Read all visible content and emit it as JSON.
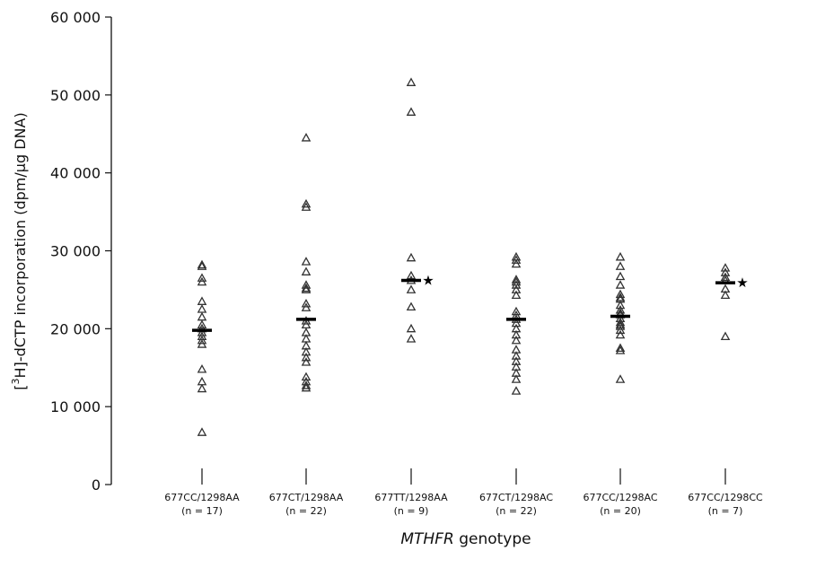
{
  "chart_data": {
    "type": "scatter",
    "xlabel_italic": "MTHFR",
    "xlabel_rest": " genotype",
    "ylabel_prefix": "[",
    "ylabel_sup": "3",
    "ylabel_rest": "H]-dCTP incorporation (dpm/µg DNA)",
    "ylim": [
      0,
      60000
    ],
    "yticks": [
      0,
      10000,
      20000,
      30000,
      40000,
      50000,
      60000
    ],
    "ytick_labels": [
      "0",
      "10 000",
      "20 000",
      "30 000",
      "40 000",
      "50 000",
      "60 000"
    ],
    "grid": false,
    "groups": [
      {
        "label": "677CC/1298AA",
        "n_label": "(n = 17)",
        "median": 19800,
        "star": false,
        "values": [
          28200,
          28000,
          26500,
          26000,
          23500,
          22500,
          21500,
          20500,
          20000,
          19500,
          19000,
          18500,
          18000,
          14800,
          13200,
          12300,
          6700
        ]
      },
      {
        "label": "677CT/1298AA",
        "n_label": "(n = 22)",
        "median": 21200,
        "star": false,
        "values": [
          44500,
          36000,
          35600,
          28600,
          27300,
          25600,
          25200,
          25000,
          23200,
          22700,
          21000,
          20500,
          19500,
          18700,
          17800,
          17000,
          16300,
          15700,
          13800,
          13200,
          12700,
          12400
        ]
      },
      {
        "label": "677TT/1298AA",
        "n_label": "(n = 9)",
        "median": 26200,
        "star": true,
        "values": [
          51600,
          47800,
          29100,
          26800,
          25000,
          22800,
          20000,
          18700,
          26200
        ]
      },
      {
        "label": "677CT/1298AC",
        "n_label": "(n = 22)",
        "median": 21200,
        "star": false,
        "values": [
          29200,
          28800,
          28300,
          26300,
          25600,
          25000,
          24300,
          22200,
          21700,
          21200,
          20700,
          20000,
          19200,
          18500,
          17300,
          16500,
          15800,
          15100,
          14300,
          13500,
          12000,
          26000
        ]
      },
      {
        "label": "677CC/1298AC",
        "n_label": "(n = 20)",
        "median": 21600,
        "star": false,
        "values": [
          29200,
          28000,
          26700,
          25600,
          24400,
          23800,
          23000,
          22400,
          21800,
          21300,
          20800,
          20300,
          19800,
          19200,
          17500,
          17200,
          13500,
          22000,
          20500,
          24000
        ]
      },
      {
        "label": "677CC/1298CC",
        "n_label": "(n = 7)",
        "median": 25900,
        "star": true,
        "values": [
          27800,
          27200,
          26600,
          26200,
          25100,
          24300,
          19000
        ]
      }
    ]
  }
}
